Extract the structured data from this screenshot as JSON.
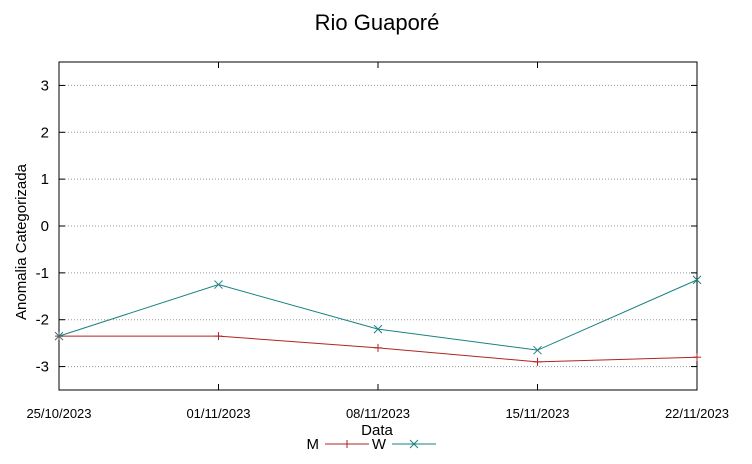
{
  "chart_data": {
    "type": "line",
    "title": "Rio Guaporé",
    "xlabel": "Data",
    "ylabel": "Anomalia Categorizada",
    "categories": [
      "25/10/2023",
      "01/11/2023",
      "08/11/2023",
      "15/11/2023",
      "22/11/2023"
    ],
    "y_ticks": [
      "3",
      "2",
      "1",
      "0",
      "-1",
      "-2",
      "-3"
    ],
    "ylim": [
      -3.5,
      3.5
    ],
    "grid": "horizontal dotted",
    "legend_placement": "bottom-center",
    "series": [
      {
        "name": "M",
        "color": "#b22222",
        "marker": "+",
        "values": [
          -2.35,
          -2.35,
          -2.6,
          -2.9,
          -2.8
        ]
      },
      {
        "name": "W",
        "color": "#1a8080",
        "marker": "x",
        "values": [
          -2.35,
          -1.25,
          -2.2,
          -2.65,
          -1.15
        ]
      }
    ]
  }
}
